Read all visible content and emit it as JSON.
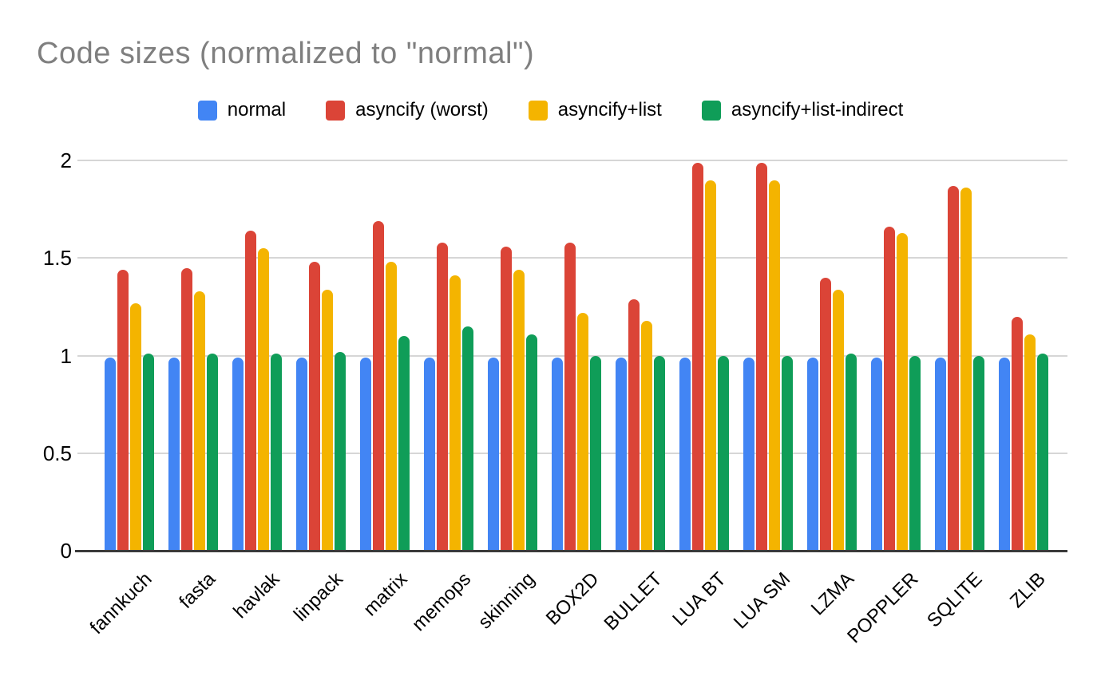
{
  "chart_data": {
    "type": "bar",
    "title": "Code sizes (normalized to \"normal\")",
    "xlabel": "",
    "ylabel": "",
    "ylim": [
      0,
      2
    ],
    "ytick_values": [
      0,
      0.5,
      1,
      1.5,
      2
    ],
    "ytick_labels": [
      "0",
      "0.5",
      "1",
      "1.5",
      "2"
    ],
    "grid": true,
    "legend_position": "top",
    "categories": [
      "fannkuch",
      "fasta",
      "havlak",
      "linpack",
      "matrix",
      "memops",
      "skinning",
      "BOX2D",
      "BULLET",
      "LUA BT",
      "LUA SM",
      "LZMA",
      "POPPLER",
      "SQLITE",
      "ZLIB"
    ],
    "series": [
      {
        "name": "normal",
        "color": "#4285F4",
        "values": [
          0.99,
          0.99,
          0.99,
          0.99,
          0.99,
          0.99,
          0.99,
          0.99,
          0.99,
          0.99,
          0.99,
          0.99,
          0.99,
          0.99,
          0.99
        ]
      },
      {
        "name": "asyncify (worst)",
        "color": "#DB4437",
        "values": [
          1.44,
          1.45,
          1.64,
          1.48,
          1.69,
          1.58,
          1.56,
          1.58,
          1.29,
          1.99,
          1.99,
          1.4,
          1.66,
          1.87,
          1.2
        ]
      },
      {
        "name": "asyncify+list",
        "color": "#F4B400",
        "values": [
          1.27,
          1.33,
          1.55,
          1.34,
          1.48,
          1.41,
          1.44,
          1.22,
          1.18,
          1.9,
          1.9,
          1.34,
          1.63,
          1.86,
          1.11
        ]
      },
      {
        "name": "asyncify+list-indirect",
        "color": "#0F9D58",
        "values": [
          1.01,
          1.01,
          1.01,
          1.02,
          1.1,
          1.15,
          1.11,
          1.0,
          1.0,
          1.0,
          1.0,
          1.01,
          1.0,
          1.0,
          1.01
        ]
      }
    ],
    "colors": {
      "title": "#7f7f7f",
      "grid": "#d6d6d6",
      "axis": "#3a3a3a",
      "labels": "#000000",
      "background": "#ffffff"
    }
  }
}
